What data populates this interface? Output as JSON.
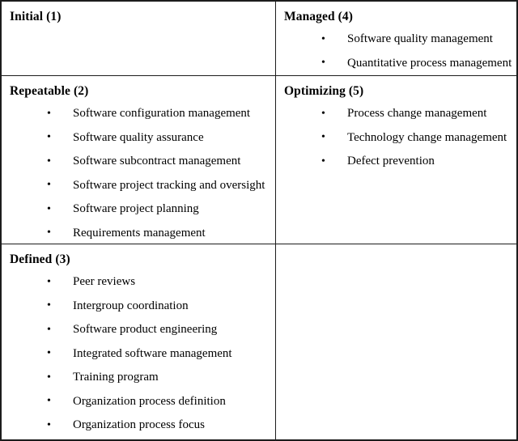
{
  "bullet": "•",
  "colors": {
    "background": "#ffffff",
    "border": "#1c1c1c",
    "text": "#000000"
  },
  "cells": [
    {
      "title": "Initial (1)",
      "items": []
    },
    {
      "title": "Managed (4)",
      "items": [
        "Software quality management",
        "Quantitative process management"
      ]
    },
    {
      "title": "Repeatable (2)",
      "items": [
        "Software configuration management",
        "Software quality assurance",
        "Software subcontract management",
        "Software project tracking and oversight",
        "Software project planning",
        "Requirements management"
      ]
    },
    {
      "title": "Optimizing (5)",
      "items": [
        "Process change management",
        "Technology change management",
        "Defect prevention"
      ]
    },
    {
      "title": "Defined (3)",
      "items": [
        "Peer reviews",
        "Intergroup coordination",
        "Software product engineering",
        "Integrated software management",
        "Training program",
        "Organization process definition",
        "Organization process focus"
      ]
    },
    {
      "title": "",
      "items": []
    }
  ]
}
